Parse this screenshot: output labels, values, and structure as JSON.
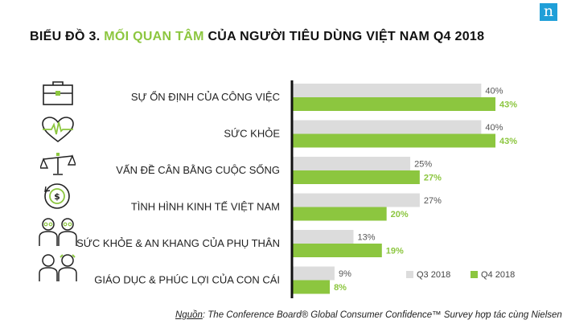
{
  "brand": {
    "logo_letter": "n",
    "color": "#1f9fd8"
  },
  "title": {
    "prefix": "BIỂU ĐỒ 3.",
    "highlight": "MỐI QUAN TÂM",
    "rest": "CỦA NGƯỜI TIÊU DÙNG VIỆT NAM Q4 2018"
  },
  "icons": [
    "briefcase-icon",
    "heart-pulse-icon",
    "balance-scale-icon",
    "money-cycle-icon",
    "elderly-parents-icon",
    "children-icon"
  ],
  "chart_data": {
    "type": "bar",
    "orientation": "horizontal",
    "categories": [
      "SỰ ỔN ĐỊNH CỦA CÔNG VIỆC",
      "SỨC KHỎE",
      "VẤN ĐỀ CÂN BẰNG CUỘC SỐNG",
      "TÌNH HÌNH KINH TẾ VIỆT NAM",
      "SỨC KHỎE & AN KHANG CỦA PHỤ THÂN",
      "GIÁO DỤC & PHÚC LỢI CỦA CON CÁI"
    ],
    "series": [
      {
        "name": "Q3 2018",
        "values": [
          40,
          40,
          25,
          27,
          13,
          9
        ],
        "labels": [
          "40%",
          "40%",
          "25%",
          "27%",
          "13%",
          "9%"
        ],
        "color": "#dcdcdc"
      },
      {
        "name": "Q4 2018",
        "values": [
          43,
          43,
          27,
          20,
          19,
          8
        ],
        "labels": [
          "43%",
          "43%",
          "27%",
          "20%",
          "19%",
          "8%"
        ],
        "color": "#8cc63f"
      }
    ],
    "xlim": [
      0,
      43
    ],
    "legend_position": "bottom-right"
  },
  "source": {
    "prefix": "Nguồn",
    "text": ": The Conference Board® Global Consumer Confidence™ Survey hợp tác cùng Nielsen"
  }
}
